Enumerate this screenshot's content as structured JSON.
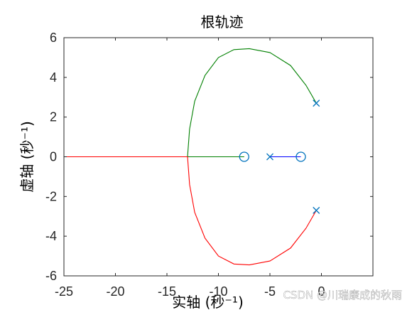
{
  "chart_data": {
    "type": "line",
    "title": "根轨迹",
    "xlabel": "实轴 (秒⁻¹)",
    "ylabel": "虚轴 (秒⁻¹)",
    "xlim": [
      -25,
      5
    ],
    "ylim": [
      -6,
      6
    ],
    "xticks": [
      -25,
      -20,
      -15,
      -10,
      -5,
      0
    ],
    "xtick_labels": [
      "-25",
      "-20",
      "-15",
      "-10",
      "-5",
      "0"
    ],
    "yticks": [
      -6,
      -4,
      -2,
      0,
      2,
      4,
      6
    ],
    "ytick_labels": [
      "-6",
      "-4",
      "-2",
      "0",
      "2",
      "4",
      "6"
    ],
    "grid": false,
    "poles": [
      {
        "x": -5.0,
        "y": 0
      },
      {
        "x": -0.5,
        "y": 2.7
      },
      {
        "x": -0.5,
        "y": -2.7
      }
    ],
    "zeros": [
      {
        "x": -7.5,
        "y": 0
      },
      {
        "x": -2.0,
        "y": 0
      }
    ],
    "series": [
      {
        "color": "#0000ff",
        "points": [
          [
            -5.0,
            0
          ],
          [
            -2.0,
            0
          ]
        ]
      },
      {
        "color": "#008000",
        "points": [
          [
            -0.5,
            2.7
          ],
          [
            -1.5,
            3.6
          ],
          [
            -3.0,
            4.6
          ],
          [
            -5.0,
            5.25
          ],
          [
            -7.0,
            5.45
          ],
          [
            -8.5,
            5.4
          ],
          [
            -10.0,
            5.0
          ],
          [
            -11.3,
            4.1
          ],
          [
            -12.3,
            2.8
          ],
          [
            -12.8,
            1.4
          ],
          [
            -13.0,
            0.0
          ],
          [
            -10.5,
            0.0
          ],
          [
            -7.5,
            0.0
          ]
        ]
      },
      {
        "color": "#ff0000",
        "points": [
          [
            -0.5,
            -2.7
          ],
          [
            -1.5,
            -3.6
          ],
          [
            -3.0,
            -4.6
          ],
          [
            -5.0,
            -5.25
          ],
          [
            -7.0,
            -5.45
          ],
          [
            -8.5,
            -5.4
          ],
          [
            -10.0,
            -5.0
          ],
          [
            -11.3,
            -4.1
          ],
          [
            -12.3,
            -2.8
          ],
          [
            -12.8,
            -1.4
          ],
          [
            -13.0,
            0.0
          ],
          [
            -19.0,
            0.0
          ],
          [
            -25.0,
            0.0
          ]
        ]
      }
    ],
    "marker_color": "#0072bd"
  },
  "watermark": "CSDN @川瑞康成的秋雨"
}
